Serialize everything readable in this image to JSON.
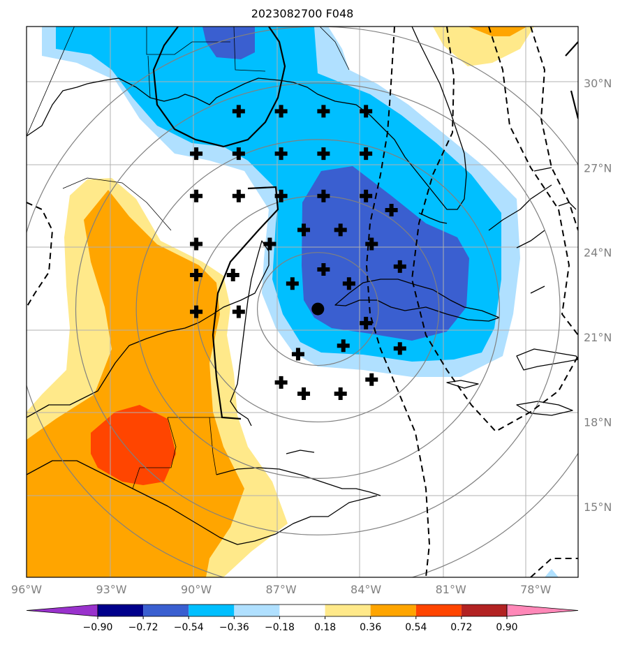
{
  "title": "2023082700 F048",
  "colors": {
    "land_line": "#000000",
    "grid": "#b0b0b0",
    "ring": "#808080",
    "pos_light": "#ffe98a",
    "pos_mid": "#ffa500",
    "pos_dark": "#ff4500",
    "neg_light": "#b0e0ff",
    "neg_mid": "#00bfff",
    "neg_dark": "#3a5fd0"
  },
  "map": {
    "lon_range": [
      -96,
      -76.5
    ],
    "lat_range": [
      12.5,
      32
    ],
    "center_marker": {
      "lon": -85.7,
      "lat": 22.0
    },
    "lat_ticks": [
      {
        "value": 30,
        "label": "30°N"
      },
      {
        "value": 27,
        "label": "27°N"
      },
      {
        "value": 24,
        "label": "24°N"
      },
      {
        "value": 21,
        "label": "21°N"
      },
      {
        "value": 18,
        "label": "18°N"
      },
      {
        "value": 15,
        "label": "15°N"
      }
    ],
    "lon_ticks": [
      {
        "value": -96,
        "label": "96°W"
      },
      {
        "value": -93,
        "label": "93°W"
      },
      {
        "value": -90,
        "label": "90°W"
      },
      {
        "value": -87,
        "label": "87°W"
      },
      {
        "value": -84,
        "label": "84°W"
      },
      {
        "value": -81,
        "label": "81°W"
      },
      {
        "value": -78,
        "label": "78°W"
      }
    ],
    "ring_radii_deg": [
      2,
      4,
      6,
      8,
      10
    ],
    "significance_points": [
      [
        -88.5,
        29.0
      ],
      [
        -87.0,
        29.0
      ],
      [
        -85.5,
        29.0
      ],
      [
        -84.0,
        29.0
      ],
      [
        -90.0,
        27.5
      ],
      [
        -88.5,
        27.5
      ],
      [
        -87.0,
        27.5
      ],
      [
        -85.5,
        27.5
      ],
      [
        -84.0,
        27.5
      ],
      [
        -90.0,
        26.0
      ],
      [
        -88.5,
        26.0
      ],
      [
        -87.0,
        26.0
      ],
      [
        -85.5,
        26.0
      ],
      [
        -84.0,
        26.0
      ],
      [
        -83.1,
        25.5
      ],
      [
        -86.2,
        24.8
      ],
      [
        -84.9,
        24.8
      ],
      [
        -90.0,
        24.3
      ],
      [
        -87.4,
        24.3
      ],
      [
        -83.8,
        24.3
      ],
      [
        -90.0,
        23.2
      ],
      [
        -88.7,
        23.2
      ],
      [
        -85.5,
        23.4
      ],
      [
        -82.8,
        23.5
      ],
      [
        -86.6,
        22.9
      ],
      [
        -84.6,
        22.9
      ],
      [
        -90.0,
        21.9
      ],
      [
        -88.5,
        21.9
      ],
      [
        -84.0,
        21.5
      ],
      [
        -86.4,
        20.4
      ],
      [
        -84.8,
        20.7
      ],
      [
        -82.8,
        20.6
      ],
      [
        -87.0,
        19.4
      ],
      [
        -83.8,
        19.5
      ],
      [
        -86.2,
        19.0
      ],
      [
        -84.9,
        19.0
      ]
    ]
  },
  "colorbar": {
    "colors": [
      "#9932cc",
      "#00008b",
      "#3a5fd0",
      "#00bfff",
      "#b0e0ff",
      "#ffffff",
      "#ffe98a",
      "#ffa500",
      "#ff4500",
      "#b22222",
      "#ff88b8"
    ],
    "labels": [
      "−0.90",
      "−0.72",
      "−0.54",
      "−0.36",
      "−0.18",
      "0.18",
      "0.36",
      "0.54",
      "0.72",
      "0.90"
    ]
  }
}
